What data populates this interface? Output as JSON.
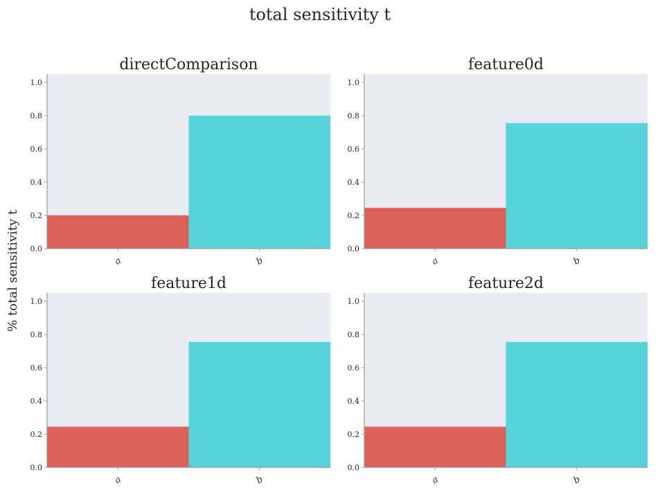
{
  "figure": {
    "title": "total sensitivity t",
    "ylabel": "% total sensitivity t"
  },
  "colors": {
    "panel_background": "#eaeaf2",
    "bar_a": "#dc6159",
    "bar_b": "#57d3db",
    "axis": "#999999",
    "text": "#262626"
  },
  "chart_data": [
    {
      "type": "bar",
      "title": "directComparison",
      "categories": [
        "a",
        "b"
      ],
      "values": [
        0.2,
        0.8
      ],
      "ylim": [
        0,
        1.05
      ],
      "yticks": [
        "0.0",
        "0.2",
        "0.4",
        "0.6",
        "0.8",
        "1.0"
      ],
      "grid": false
    },
    {
      "type": "bar",
      "title": "feature0d",
      "categories": [
        "a",
        "b"
      ],
      "values": [
        0.245,
        0.755
      ],
      "ylim": [
        0,
        1.05
      ],
      "yticks": [
        "0.0",
        "0.2",
        "0.4",
        "0.6",
        "0.8",
        "1.0"
      ],
      "grid": false
    },
    {
      "type": "bar",
      "title": "feature1d",
      "categories": [
        "a",
        "b"
      ],
      "values": [
        0.245,
        0.755
      ],
      "ylim": [
        0,
        1.05
      ],
      "yticks": [
        "0.0",
        "0.2",
        "0.4",
        "0.6",
        "0.8",
        "1.0"
      ],
      "grid": false
    },
    {
      "type": "bar",
      "title": "feature2d",
      "categories": [
        "a",
        "b"
      ],
      "values": [
        0.245,
        0.755
      ],
      "ylim": [
        0,
        1.05
      ],
      "yticks": [
        "0.0",
        "0.2",
        "0.4",
        "0.6",
        "0.8",
        "1.0"
      ],
      "grid": false
    }
  ]
}
